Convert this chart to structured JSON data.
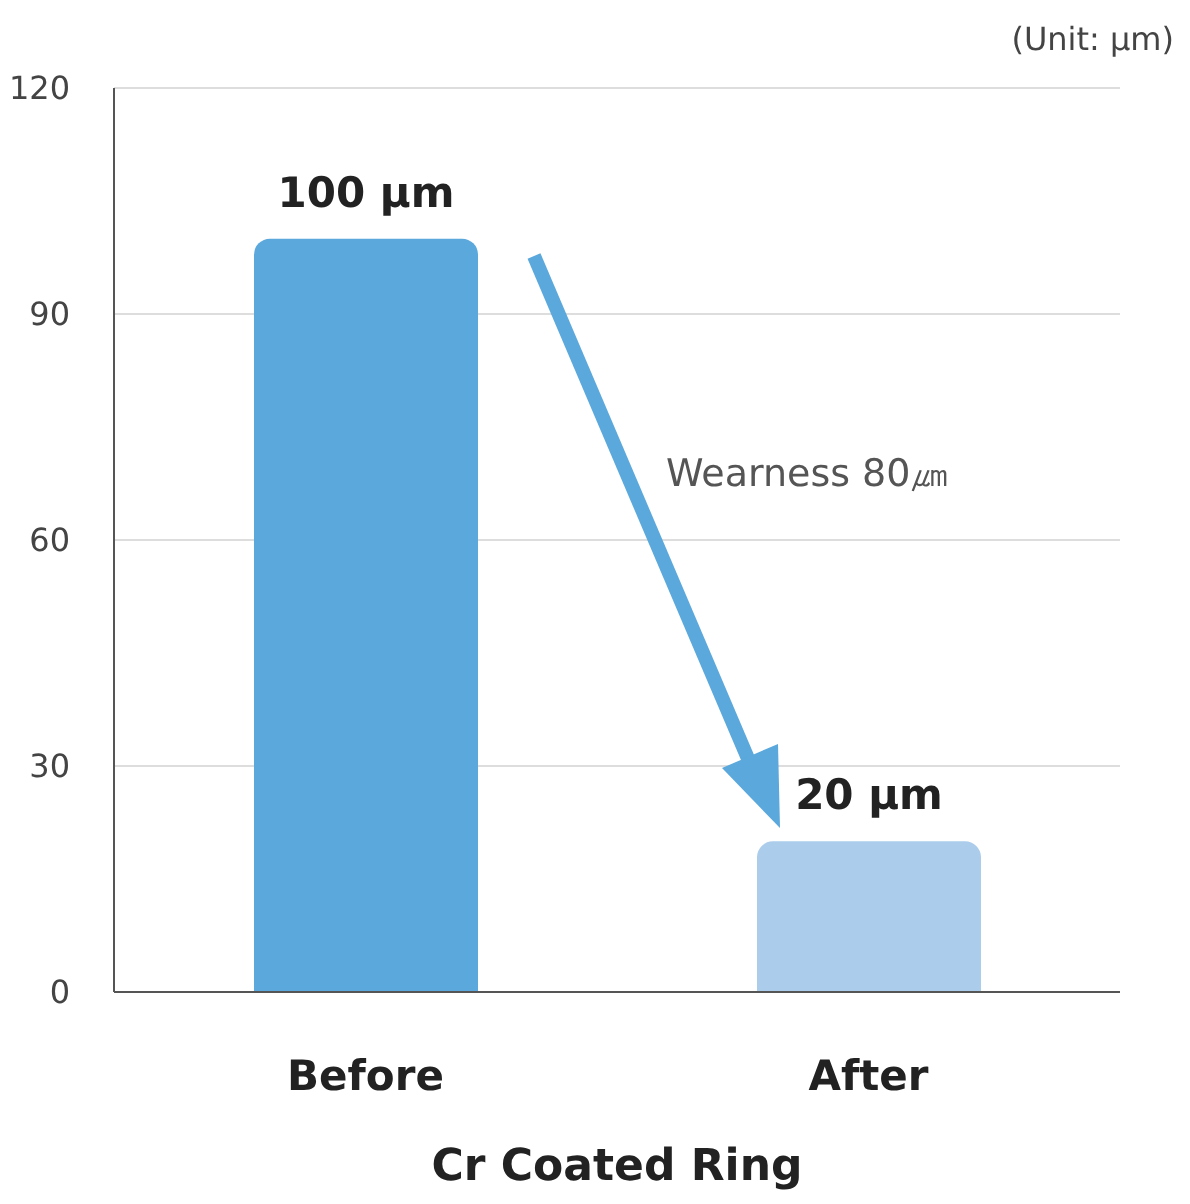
{
  "chart_data": {
    "type": "bar",
    "xlabel": "Cr Coated Ring",
    "categories": [
      "Before",
      "After"
    ],
    "values": [
      100,
      20
    ],
    "colors": [
      "#5aa8dc",
      "#abcdeb"
    ],
    "value_labels": [
      "100 µm",
      "20 µm"
    ],
    "ylim": [
      0,
      120
    ],
    "yticks": [
      0,
      30,
      60,
      90,
      120
    ],
    "grid": "y",
    "annotations": [
      "(Unit: µm)",
      "Wearness 80㎛"
    ]
  }
}
